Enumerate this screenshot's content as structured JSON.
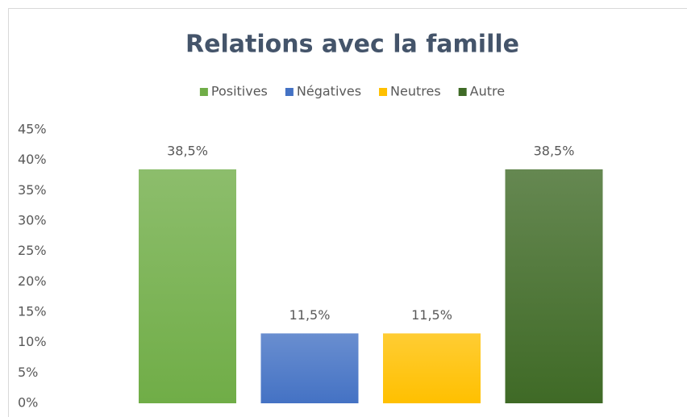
{
  "chart_data": {
    "type": "bar",
    "title": "Relations avec la famille",
    "categories": [
      null
    ],
    "series": [
      {
        "name": "Positives",
        "color": "#70ad47",
        "values": [
          38.5
        ],
        "value_labels": [
          "38,5%"
        ]
      },
      {
        "name": "Négatives",
        "color": "#4472c4",
        "values": [
          11.5
        ],
        "value_labels": [
          "11,5%"
        ]
      },
      {
        "name": "Neutres",
        "color": "#ffc000",
        "values": [
          11.5
        ],
        "value_labels": [
          "11,5%"
        ]
      },
      {
        "name": "Autre",
        "color": "#3f6a26",
        "values": [
          38.5
        ],
        "value_labels": [
          "38,5%"
        ]
      }
    ],
    "ylim": [
      0,
      45
    ],
    "yticks": [
      {
        "value": 0,
        "label": "0%"
      },
      {
        "value": 5,
        "label": "5%"
      },
      {
        "value": 10,
        "label": "10%"
      },
      {
        "value": 15,
        "label": "15%"
      },
      {
        "value": 20,
        "label": "20%"
      },
      {
        "value": 25,
        "label": "25%"
      },
      {
        "value": 30,
        "label": "30%"
      },
      {
        "value": 35,
        "label": "35%"
      },
      {
        "value": 40,
        "label": "40%"
      },
      {
        "value": 45,
        "label": "45%"
      }
    ],
    "grid": false,
    "legend": "top"
  }
}
